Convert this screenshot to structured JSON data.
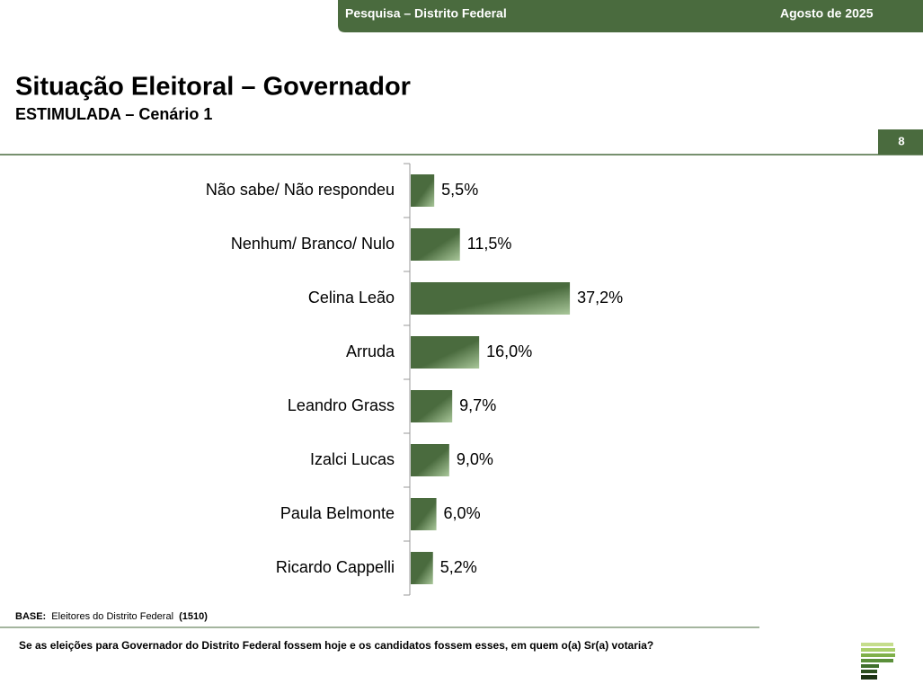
{
  "header": {
    "survey": "Pesquisa – Distrito Federal",
    "date": "Agosto de 2025"
  },
  "title": "Situação Eleitoral – Governador",
  "subtitle": "ESTIMULADA – Cenário 1",
  "page_number": "8",
  "base": {
    "label": "BASE:",
    "text": "Eleitores do Distrito Federal",
    "count": "(1510)"
  },
  "question": "Se as eleições para Governador do Distrito Federal fossem hoje e os candidatos fossem esses, em quem o(a) Sr(a) votaria?",
  "chart_data": {
    "type": "hbar",
    "categories": [
      "Não sabe/ Não respondeu",
      "Nenhum/ Branco/ Nulo",
      "Celina Leão",
      "Arruda",
      "Leandro Grass",
      "Izalci Lucas",
      "Paula Belmonte",
      "Ricardo Cappelli"
    ],
    "values": [
      5.5,
      11.5,
      37.2,
      16.0,
      9.7,
      9.0,
      6.0,
      5.2
    ],
    "value_labels": [
      "5,5%",
      "11,5%",
      "37,2%",
      "16,0%",
      "9,7%",
      "9,0%",
      "6,0%",
      "5,2%"
    ],
    "color": "#4a6b3e"
  }
}
